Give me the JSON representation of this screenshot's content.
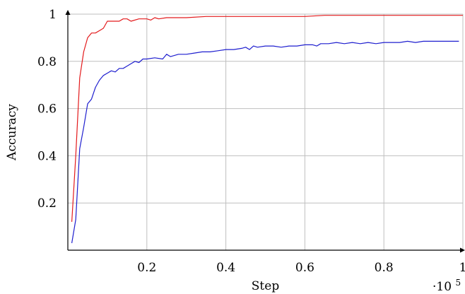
{
  "chart_data": {
    "type": "line",
    "xlabel": "Step",
    "ylabel": "Accuracy",
    "x_exponent_label": "·10",
    "x_exponent_power": "5",
    "xlim": [
      0,
      1
    ],
    "ylim": [
      0,
      1
    ],
    "x_ticks": [
      0.2,
      0.4,
      0.6,
      0.8,
      1
    ],
    "x_tick_labels": [
      "0.2",
      "0.4",
      "0.6",
      "0.8",
      "1"
    ],
    "y_ticks": [
      0.2,
      0.4,
      0.6,
      0.8,
      1
    ],
    "y_tick_labels": [
      "0.2",
      "0.4",
      "0.6",
      "0.8",
      "1"
    ],
    "grid": true,
    "series": [
      {
        "color": "#e31a1c",
        "x": [
          0.01,
          0.02,
          0.03,
          0.04,
          0.05,
          0.06,
          0.07,
          0.08,
          0.09,
          0.1,
          0.11,
          0.12,
          0.13,
          0.14,
          0.15,
          0.16,
          0.18,
          0.2,
          0.21,
          0.22,
          0.23,
          0.25,
          0.28,
          0.3,
          0.35,
          0.4,
          0.45,
          0.5,
          0.55,
          0.6,
          0.65,
          0.7,
          0.75,
          0.8,
          0.85,
          0.9,
          0.95,
          1.0
        ],
        "y": [
          0.12,
          0.4,
          0.73,
          0.84,
          0.9,
          0.92,
          0.92,
          0.93,
          0.94,
          0.97,
          0.97,
          0.97,
          0.97,
          0.98,
          0.98,
          0.97,
          0.98,
          0.98,
          0.975,
          0.985,
          0.98,
          0.985,
          0.985,
          0.985,
          0.99,
          0.99,
          0.99,
          0.99,
          0.99,
          0.99,
          0.995,
          0.995,
          0.995,
          0.995,
          0.995,
          0.995,
          0.995,
          0.995
        ]
      },
      {
        "color": "#1f1fcf",
        "x": [
          0.01,
          0.02,
          0.03,
          0.04,
          0.05,
          0.06,
          0.07,
          0.08,
          0.09,
          0.1,
          0.11,
          0.12,
          0.13,
          0.14,
          0.15,
          0.16,
          0.17,
          0.18,
          0.19,
          0.2,
          0.22,
          0.24,
          0.25,
          0.26,
          0.28,
          0.3,
          0.32,
          0.34,
          0.36,
          0.38,
          0.4,
          0.42,
          0.44,
          0.45,
          0.46,
          0.47,
          0.48,
          0.5,
          0.52,
          0.54,
          0.56,
          0.58,
          0.6,
          0.62,
          0.63,
          0.64,
          0.66,
          0.68,
          0.7,
          0.72,
          0.74,
          0.76,
          0.78,
          0.8,
          0.82,
          0.84,
          0.86,
          0.88,
          0.9,
          0.92,
          0.94,
          0.96,
          0.98,
          0.99
        ],
        "y": [
          0.03,
          0.13,
          0.43,
          0.52,
          0.62,
          0.64,
          0.69,
          0.72,
          0.74,
          0.75,
          0.76,
          0.755,
          0.77,
          0.77,
          0.78,
          0.79,
          0.8,
          0.795,
          0.81,
          0.81,
          0.815,
          0.81,
          0.83,
          0.82,
          0.83,
          0.83,
          0.835,
          0.84,
          0.84,
          0.845,
          0.85,
          0.85,
          0.855,
          0.86,
          0.85,
          0.865,
          0.86,
          0.865,
          0.865,
          0.86,
          0.865,
          0.865,
          0.87,
          0.87,
          0.865,
          0.875,
          0.875,
          0.88,
          0.875,
          0.88,
          0.875,
          0.88,
          0.875,
          0.88,
          0.88,
          0.88,
          0.885,
          0.88,
          0.885,
          0.885,
          0.885,
          0.885,
          0.885,
          0.885
        ]
      }
    ]
  }
}
